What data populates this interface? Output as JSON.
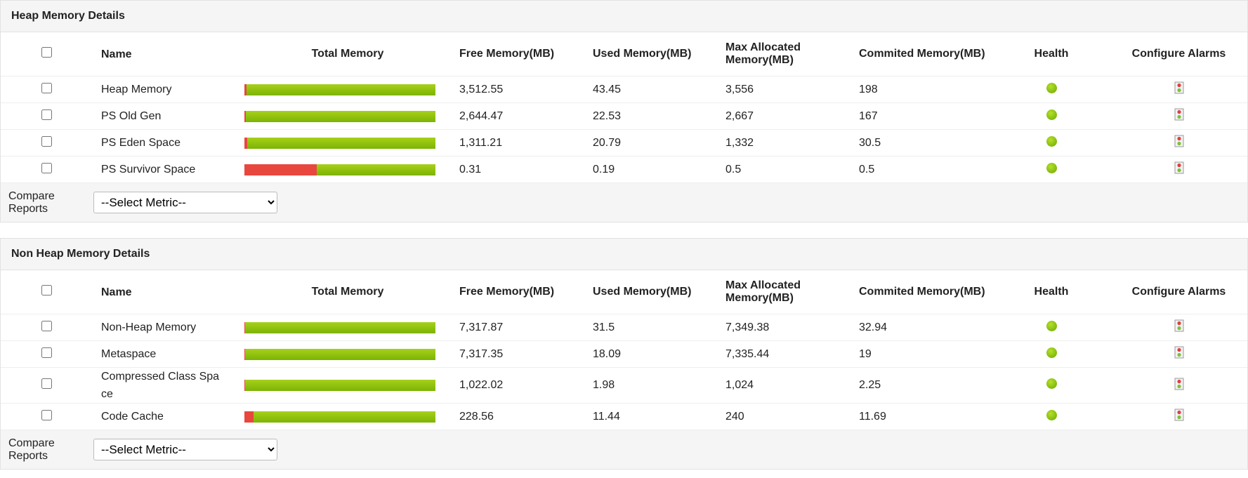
{
  "sections": [
    {
      "title": "Heap Memory Details",
      "headers": [
        "Name",
        "Total Memory",
        "Free Memory(MB)",
        "Used Memory(MB)",
        "Max Allocated Memory(MB)",
        "Commited Memory(MB)",
        "Health",
        "Configure Alarms"
      ],
      "rows": [
        {
          "name": "Heap Memory",
          "free": "3,512.55",
          "used": "43.45",
          "max": "3,556",
          "committed": "198"
        },
        {
          "name": "PS Old Gen",
          "free": "2,644.47",
          "used": "22.53",
          "max": "2,667",
          "committed": "167"
        },
        {
          "name": "PS Eden Space",
          "free": "1,311.21",
          "used": "20.79",
          "max": "1,332",
          "committed": "30.5"
        },
        {
          "name": "PS Survivor Space",
          "free": "0.31",
          "used": "0.19",
          "max": "0.5",
          "committed": "0.5"
        }
      ],
      "compare_label": "Compare Reports",
      "select": "--Select Metric--"
    },
    {
      "title": "Non Heap Memory Details",
      "headers": [
        "Name",
        "Total Memory",
        "Free Memory(MB)",
        "Used Memory(MB)",
        "Max Allocated Memory(MB)",
        "Commited Memory(MB)",
        "Health",
        "Configure Alarms"
      ],
      "rows": [
        {
          "name": "Non-Heap Memory",
          "free": "7,317.87",
          "used": "31.5",
          "max": "7,349.38",
          "committed": "32.94"
        },
        {
          "name": "Metaspace",
          "free": "7,317.35",
          "used": "18.09",
          "max": "7,335.44",
          "committed": "19"
        },
        {
          "name": "Compressed Class Space",
          "free": "1,022.02",
          "used": "1.98",
          "max": "1,024",
          "committed": "2.25"
        },
        {
          "name": "Code Cache",
          "free": "228.56",
          "used": "11.44",
          "max": "240",
          "committed": "11.69"
        }
      ],
      "compare_label": "Compare Reports",
      "select": "--Select Metric--"
    }
  ]
}
